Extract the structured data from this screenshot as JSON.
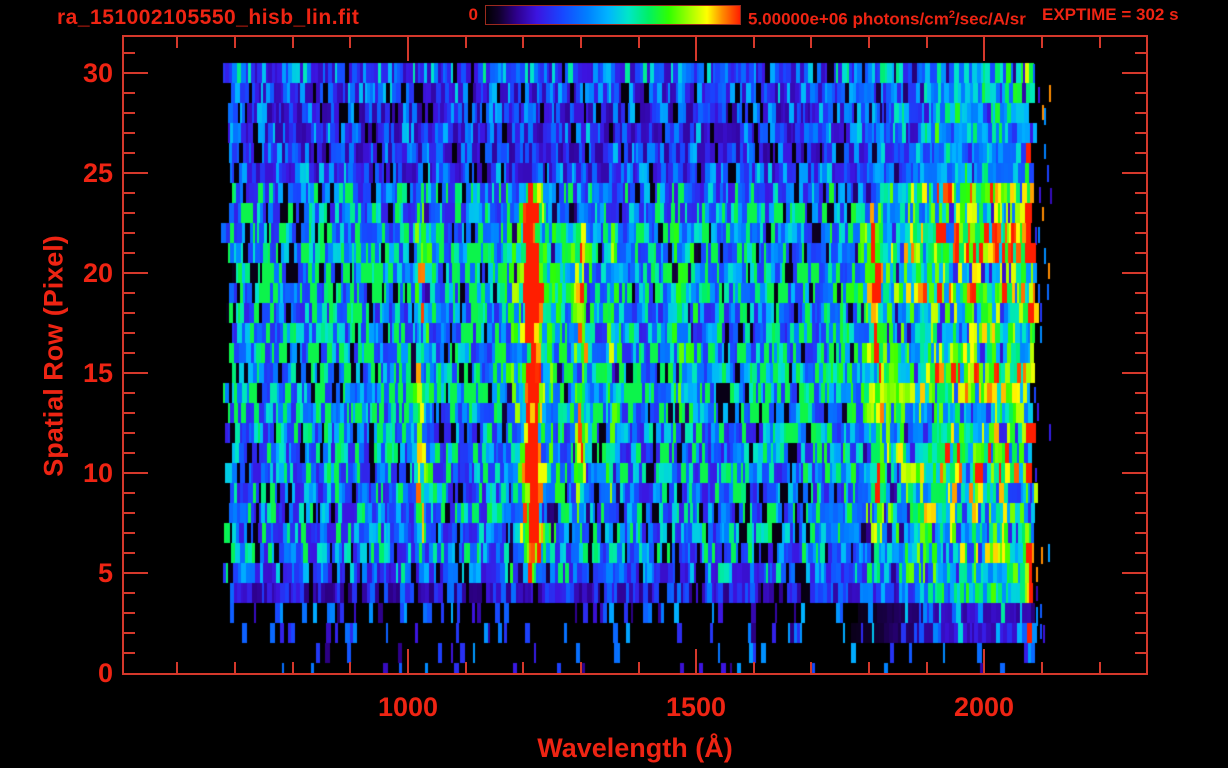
{
  "header": {
    "title": "ra_151002105550_hisb_lin.fit",
    "exptime": "EXPTIME = 302 s",
    "colorbar": {
      "min_label": "0",
      "max_value": "5.00000e+06",
      "units_pre": " photons/cm",
      "units_sup": "2",
      "units_post": "/sec/A/sr"
    }
  },
  "chart_data": {
    "type": "heatmap",
    "title": "ra_151002105550_hisb_lin.fit",
    "xlabel": "Wavelength (Å)",
    "ylabel": "Spatial Row (Pixel)",
    "xlim": [
      506,
      2280
    ],
    "ylim": [
      0,
      31.8
    ],
    "x_major_ticks": [
      1000,
      1500,
      2000
    ],
    "x_minor_step": 100,
    "x_minor_range": [
      600,
      2200
    ],
    "y_major_ticks": [
      0,
      5,
      10,
      15,
      20,
      25,
      30
    ],
    "y_minor_step": 1,
    "colorbar_range_photons": [
      0,
      5000000
    ],
    "colorbar_units": "photons/cm^2/sec/A/sr",
    "exposure_time_s": 302,
    "colormap_stops": [
      [
        0.0,
        "#000000"
      ],
      [
        0.05,
        "#10002a"
      ],
      [
        0.12,
        "#2e008c"
      ],
      [
        0.2,
        "#3c14e0"
      ],
      [
        0.3,
        "#1846ff"
      ],
      [
        0.4,
        "#0080ff"
      ],
      [
        0.48,
        "#00b4ff"
      ],
      [
        0.56,
        "#00e6c8"
      ],
      [
        0.64,
        "#00f064"
      ],
      [
        0.72,
        "#30ff00"
      ],
      [
        0.8,
        "#a0ff00"
      ],
      [
        0.87,
        "#ffff00"
      ],
      [
        0.93,
        "#ff8c00"
      ],
      [
        1.0,
        "#ff1e00"
      ]
    ],
    "data_extent": {
      "wavelength_min": 680,
      "wavelength_max": 2082,
      "row_min": 0,
      "row_max": 30
    },
    "row_brightness": [
      0.03,
      0.05,
      0.09,
      0.13,
      0.22,
      0.36,
      0.4,
      0.42,
      0.41,
      0.4,
      0.42,
      0.4,
      0.43,
      0.48,
      0.53,
      0.53,
      0.49,
      0.43,
      0.45,
      0.5,
      0.53,
      0.53,
      0.49,
      0.44,
      0.4,
      0.3,
      0.27,
      0.29,
      0.27,
      0.29,
      0.33
    ],
    "emission_features": [
      {
        "wavelength": 1025,
        "sigma": 7,
        "strength": 0.34,
        "row_min": 7,
        "row_max": 23
      },
      {
        "wavelength": 1216,
        "sigma": 8,
        "strength": 0.98,
        "row_min": 5,
        "row_max": 24
      },
      {
        "wavelength": 1216,
        "sigma": 26,
        "strength": 0.22,
        "row_min": 5,
        "row_max": 24
      },
      {
        "wavelength": 1302,
        "sigma": 8,
        "strength": 0.42,
        "row_min": 8,
        "row_max": 23
      },
      {
        "wavelength": 1356,
        "sigma": 6,
        "strength": 0.2,
        "row_min": 8,
        "row_max": 22
      },
      {
        "wavelength": 1480,
        "sigma": 14,
        "strength": 0.12,
        "row_min": 12,
        "row_max": 22
      },
      {
        "wavelength": 1812,
        "sigma": 9,
        "strength": 0.4,
        "row_min": 7,
        "row_max": 23
      },
      {
        "wavelength": 1990,
        "sigma": 110,
        "strength": 0.34,
        "row_min": 2,
        "row_max": 30
      },
      {
        "wavelength": 2079,
        "sigma": 5,
        "strength": 0.92,
        "row_min": 1,
        "row_max": 30,
        "sparse": true
      }
    ],
    "seed": 151002105
  },
  "colors": {
    "background": "#000000",
    "text": "#ee2413",
    "axis_lines": "#d5382b"
  }
}
